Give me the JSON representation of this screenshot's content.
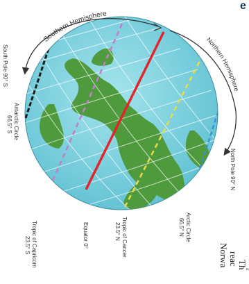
{
  "labels": {
    "southern_hemisphere": "Southern Hemisphere",
    "northern_hemisphere": "Northern Hemisphere",
    "south_pole": "South Pole 90° S",
    "antarctic_circle_name": "Antarctic Circle",
    "antarctic_circle_lat": "66.5° S",
    "tropic_capricorn_name": "Tropic of Capricorn",
    "tropic_capricorn_lat": "23.5° S",
    "equator": "Equator 0°",
    "tropic_cancer_name": "Tropic of Cancer",
    "tropic_cancer_lat": "23.5° N",
    "arctic_circle_name": "Arctic Circle",
    "arctic_circle_lat": "66.5° N",
    "north_pole": "North Pole 90° N"
  },
  "cutoff_text": {
    "line1": "Norwa",
    "line2": "reac",
    "line3": "Th",
    "line4": "r",
    "corner": "e"
  },
  "colors": {
    "ocean": "#7fd3e0",
    "land": "#4e9a3c",
    "equator": "#e0262c",
    "tropic_of_cancer": "#e8dc4a",
    "tropic_of_capricorn": "#c27fc8",
    "arctic_circle": "#3a8fd0",
    "antarctic_circle": "#1a1a1a",
    "grid": "#ffffff",
    "arrow": "#333333"
  }
}
